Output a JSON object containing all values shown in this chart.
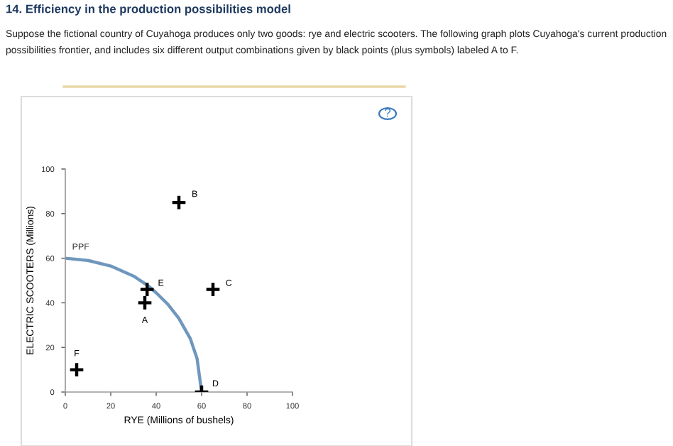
{
  "chart_data": {
    "type": "scatter",
    "title": "14. Efficiency in the production possibilities model",
    "subtitle": "Suppose the fictional country of Cuyahoga produces only two goods: rye and electric scooters. The following graph plots Cuyahoga's current production possibilities frontier, and includes six different output combinations given by black points (plus symbols) labeled A to F.",
    "xlabel": "RYE (Millions of bushels)",
    "ylabel": "ELECTRIC SCOOTERS (Millions)",
    "series": [
      {
        "name": "PPF",
        "type": "line",
        "color": "#6f97bd",
        "x": [
          0,
          10,
          20,
          30,
          36,
          40,
          45,
          50,
          55,
          58,
          60
        ],
        "values": [
          60,
          59,
          56.5,
          52,
          48,
          44.5,
          39.5,
          33,
          24,
          15,
          0
        ]
      },
      {
        "color": "#000000",
        "marker": "cross",
        "x": [
          35,
          50,
          65,
          60,
          36,
          5
        ],
        "values": [
          40,
          85,
          46,
          0,
          46,
          10
        ]
      }
    ],
    "annotations": [
      {
        "text": "A",
        "x": 35,
        "y": 40
      },
      {
        "text": "B",
        "x": 50,
        "y": 85
      },
      {
        "text": "C",
        "x": 65,
        "y": 46
      },
      {
        "text": "D",
        "x": 60,
        "y": 0
      },
      {
        "text": "E",
        "x": 36,
        "y": 46
      },
      {
        "text": "F",
        "x": 5,
        "y": 10
      },
      "?"
    ],
    "xlim": [
      0,
      100
    ],
    "ylim": [
      0,
      100
    ],
    "xticks": [
      0,
      20,
      40,
      60,
      80,
      100
    ],
    "yticks": [
      0,
      20,
      40,
      60,
      80,
      100
    ],
    "grid": false,
    "legend": false
  }
}
